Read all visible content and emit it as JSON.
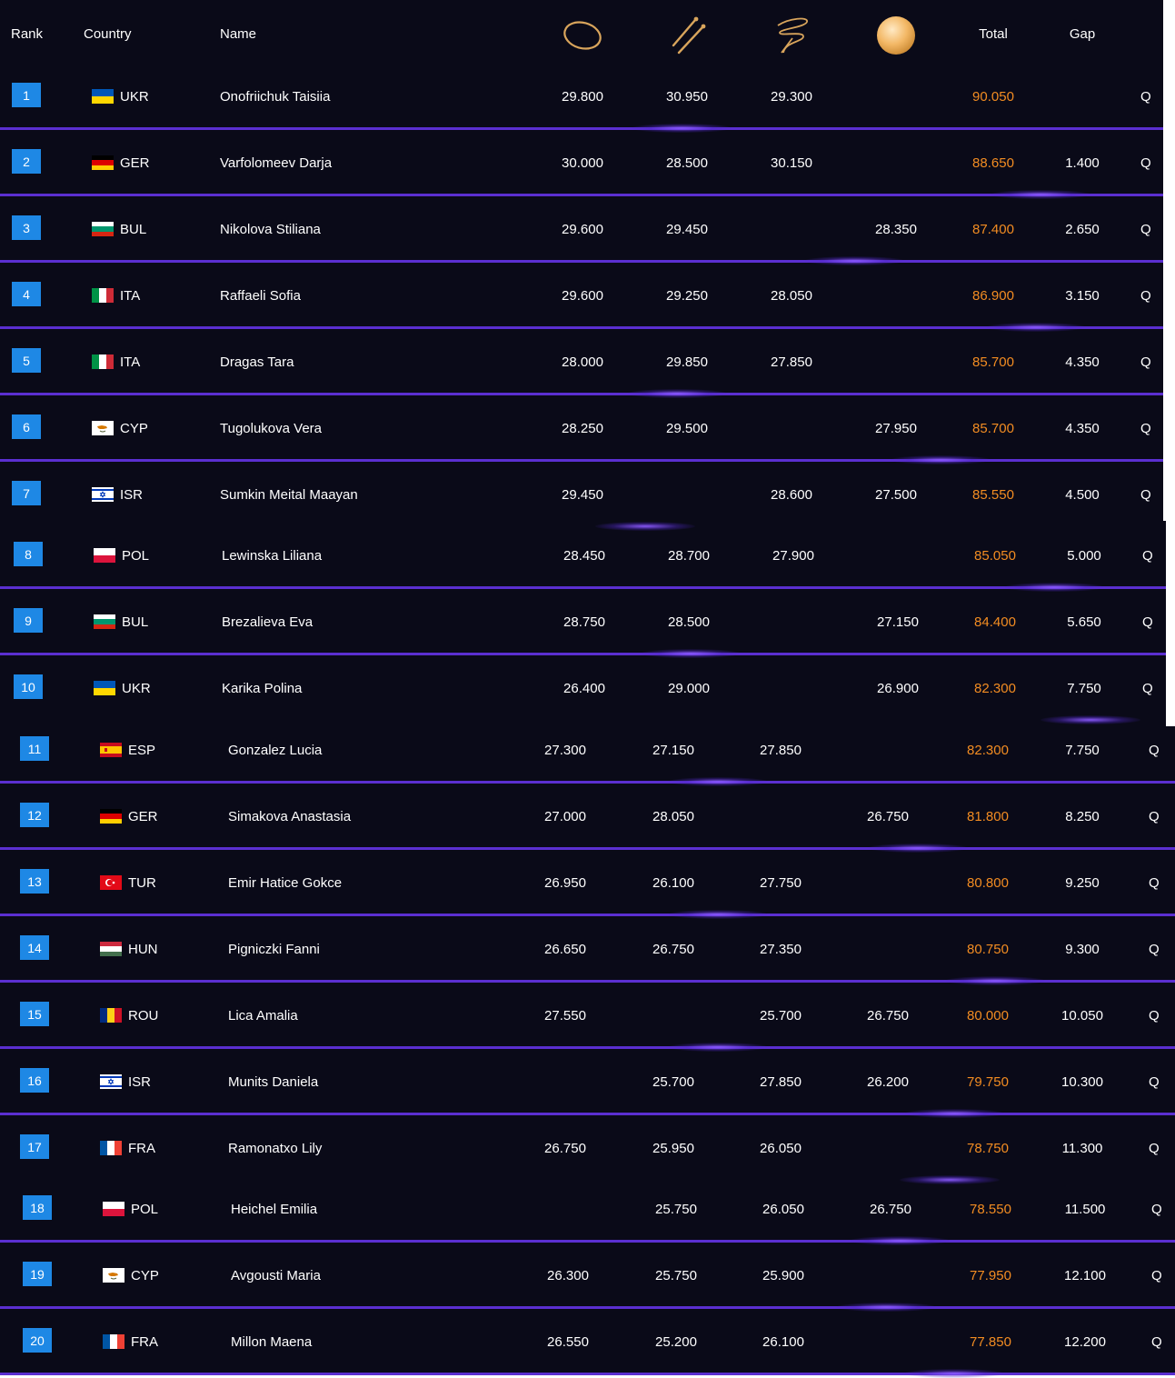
{
  "headers": {
    "rank": "Rank",
    "country": "Country",
    "name": "Name",
    "total": "Total",
    "gap": "Gap",
    "apparatus": [
      "hoop-icon",
      "clubs-icon",
      "ribbon-icon",
      "ball-icon"
    ]
  },
  "colors": {
    "background": "#0a0a18",
    "rank_badge": "#1e88e5",
    "total": "#f28c22",
    "separator": "#5b2fd0"
  },
  "rows": [
    {
      "rank": "1",
      "country": "UKR",
      "name": "Onofriichuk Taisiia",
      "hoop": "29.800",
      "clubs": "30.950",
      "ribbon": "29.300",
      "ball": "",
      "total": "90.050",
      "gap": "",
      "q": "Q"
    },
    {
      "rank": "2",
      "country": "GER",
      "name": "Varfolomeev Darja",
      "hoop": "30.000",
      "clubs": "28.500",
      "ribbon": "30.150",
      "ball": "",
      "total": "88.650",
      "gap": "1.400",
      "q": "Q"
    },
    {
      "rank": "3",
      "country": "BUL",
      "name": "Nikolova Stiliana",
      "hoop": "29.600",
      "clubs": "29.450",
      "ribbon": "",
      "ball": "28.350",
      "total": "87.400",
      "gap": "2.650",
      "q": "Q"
    },
    {
      "rank": "4",
      "country": "ITA",
      "name": "Raffaeli Sofia",
      "hoop": "29.600",
      "clubs": "29.250",
      "ribbon": "28.050",
      "ball": "",
      "total": "86.900",
      "gap": "3.150",
      "q": "Q"
    },
    {
      "rank": "5",
      "country": "ITA",
      "name": "Dragas Tara",
      "hoop": "28.000",
      "clubs": "29.850",
      "ribbon": "27.850",
      "ball": "",
      "total": "85.700",
      "gap": "4.350",
      "q": "Q"
    },
    {
      "rank": "6",
      "country": "CYP",
      "name": "Tugolukova Vera",
      "hoop": "28.250",
      "clubs": "29.500",
      "ribbon": "",
      "ball": "27.950",
      "total": "85.700",
      "gap": "4.350",
      "q": "Q"
    },
    {
      "rank": "7",
      "country": "ISR",
      "name": "Sumkin Meital Maayan",
      "hoop": "29.450",
      "clubs": "",
      "ribbon": "28.600",
      "ball": "27.500",
      "total": "85.550",
      "gap": "4.500",
      "q": "Q"
    },
    {
      "rank": "8",
      "country": "POL",
      "name": "Lewinska Liliana",
      "hoop": "28.450",
      "clubs": "28.700",
      "ribbon": "27.900",
      "ball": "",
      "total": "85.050",
      "gap": "5.000",
      "q": "Q"
    },
    {
      "rank": "9",
      "country": "BUL",
      "name": "Brezalieva Eva",
      "hoop": "28.750",
      "clubs": "28.500",
      "ribbon": "",
      "ball": "27.150",
      "total": "84.400",
      "gap": "5.650",
      "q": "Q"
    },
    {
      "rank": "10",
      "country": "UKR",
      "name": "Karika Polina",
      "hoop": "26.400",
      "clubs": "29.000",
      "ribbon": "",
      "ball": "26.900",
      "total": "82.300",
      "gap": "7.750",
      "q": "Q"
    },
    {
      "rank": "11",
      "country": "ESP",
      "name": "Gonzalez Lucia",
      "hoop": "27.300",
      "clubs": "27.150",
      "ribbon": "27.850",
      "ball": "",
      "total": "82.300",
      "gap": "7.750",
      "q": "Q"
    },
    {
      "rank": "12",
      "country": "GER",
      "name": "Simakova Anastasia",
      "hoop": "27.000",
      "clubs": "28.050",
      "ribbon": "",
      "ball": "26.750",
      "total": "81.800",
      "gap": "8.250",
      "q": "Q"
    },
    {
      "rank": "13",
      "country": "TUR",
      "name": "Emir Hatice Gokce",
      "hoop": "26.950",
      "clubs": "26.100",
      "ribbon": "27.750",
      "ball": "",
      "total": "80.800",
      "gap": "9.250",
      "q": "Q"
    },
    {
      "rank": "14",
      "country": "HUN",
      "name": "Pigniczki Fanni",
      "hoop": "26.650",
      "clubs": "26.750",
      "ribbon": "27.350",
      "ball": "",
      "total": "80.750",
      "gap": "9.300",
      "q": "Q"
    },
    {
      "rank": "15",
      "country": "ROU",
      "name": "Lica Amalia",
      "hoop": "27.550",
      "clubs": "",
      "ribbon": "25.700",
      "ball": "26.750",
      "total": "80.000",
      "gap": "10.050",
      "q": "Q"
    },
    {
      "rank": "16",
      "country": "ISR",
      "name": "Munits Daniela",
      "hoop": "",
      "clubs": "25.700",
      "ribbon": "27.850",
      "ball": "26.200",
      "total": "79.750",
      "gap": "10.300",
      "q": "Q"
    },
    {
      "rank": "17",
      "country": "FRA",
      "name": "Ramonatxo Lily",
      "hoop": "26.750",
      "clubs": "25.950",
      "ribbon": "26.050",
      "ball": "",
      "total": "78.750",
      "gap": "11.300",
      "q": "Q"
    },
    {
      "rank": "18",
      "country": "POL",
      "name": "Heichel Emilia",
      "hoop": "",
      "clubs": "25.750",
      "ribbon": "26.050",
      "ball": "26.750",
      "total": "78.550",
      "gap": "11.500",
      "q": "Q"
    },
    {
      "rank": "19",
      "country": "CYP",
      "name": "Avgousti Maria",
      "hoop": "26.300",
      "clubs": "25.750",
      "ribbon": "25.900",
      "ball": "",
      "total": "77.950",
      "gap": "12.100",
      "q": "Q"
    },
    {
      "rank": "20",
      "country": "FRA",
      "name": "Millon Maena",
      "hoop": "26.550",
      "clubs": "25.200",
      "ribbon": "26.100",
      "ball": "",
      "total": "77.850",
      "gap": "12.200",
      "q": "Q"
    }
  ]
}
